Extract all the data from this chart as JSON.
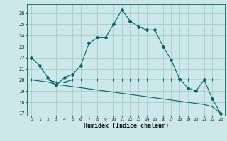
{
  "xlabel": "Humidex (Indice chaleur)",
  "ylabel": "",
  "xlim": [
    -0.5,
    23.5
  ],
  "ylim": [
    16.8,
    26.8
  ],
  "yticks": [
    17,
    18,
    19,
    20,
    21,
    22,
    23,
    24,
    25,
    26
  ],
  "xticks": [
    0,
    1,
    2,
    3,
    4,
    5,
    6,
    7,
    8,
    9,
    10,
    11,
    12,
    13,
    14,
    15,
    16,
    17,
    18,
    19,
    20,
    21,
    22,
    23
  ],
  "bg_color": "#cde8e8",
  "grid_color": "#a0c8c8",
  "line_color": "#006666",
  "line1_x": [
    0,
    1,
    2,
    3,
    4,
    5,
    6,
    7,
    8,
    9,
    10,
    11,
    12,
    13,
    14,
    15,
    16,
    17,
    18,
    19,
    20,
    21,
    22,
    23
  ],
  "line1_y": [
    22.0,
    21.3,
    20.2,
    19.5,
    20.2,
    20.5,
    21.3,
    23.3,
    23.8,
    23.8,
    25.0,
    26.3,
    25.3,
    24.8,
    24.5,
    24.5,
    23.0,
    21.8,
    20.1,
    19.3,
    19.0,
    20.0,
    18.3,
    17.0
  ],
  "line2_x": [
    0,
    1,
    2,
    3,
    4,
    5,
    6,
    7,
    8,
    9,
    10,
    11,
    12,
    13,
    14,
    15,
    16,
    17,
    18,
    19,
    20,
    21,
    22,
    23
  ],
  "line2_y": [
    20.0,
    20.0,
    20.0,
    19.8,
    19.8,
    20.0,
    20.0,
    20.0,
    20.0,
    20.0,
    20.0,
    20.0,
    20.0,
    20.0,
    20.0,
    20.0,
    20.0,
    20.0,
    20.0,
    20.0,
    20.0,
    20.0,
    20.0,
    20.0
  ],
  "line3_x": [
    0,
    1,
    2,
    3,
    4,
    5,
    6,
    7,
    8,
    9,
    10,
    11,
    12,
    13,
    14,
    15,
    16,
    17,
    18,
    19,
    20,
    21,
    22,
    23
  ],
  "line3_y": [
    20.0,
    19.9,
    19.8,
    19.6,
    19.5,
    19.4,
    19.3,
    19.2,
    19.1,
    19.0,
    18.9,
    18.8,
    18.7,
    18.6,
    18.5,
    18.4,
    18.3,
    18.2,
    18.1,
    18.0,
    17.9,
    17.8,
    17.6,
    17.0
  ]
}
